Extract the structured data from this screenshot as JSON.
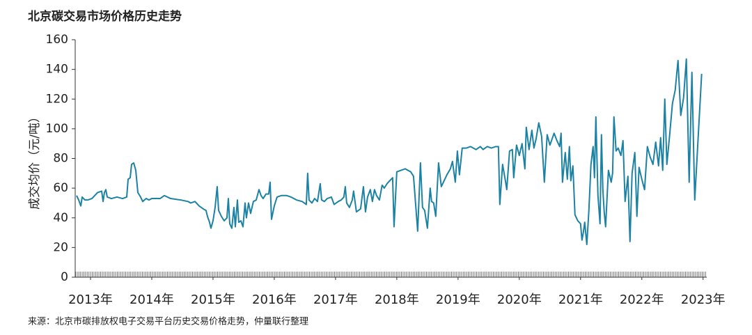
{
  "chart_data": {
    "type": "line",
    "title": "北京碳交易市场价格历史走势",
    "ylabel": "成交均价（元/吨）",
    "source": "来源：北京市碳排放权电子交易平台历史交易价格走势，仲量联行整理",
    "color": "#1c82a3",
    "xlim": [
      2012.75,
      2023.06
    ],
    "xticks": [
      {
        "value": 2013,
        "label": "2013年"
      },
      {
        "value": 2014,
        "label": "2014年"
      },
      {
        "value": 2015,
        "label": "2015年"
      },
      {
        "value": 2016,
        "label": "2016年"
      },
      {
        "value": 2017,
        "label": "2017年"
      },
      {
        "value": 2018,
        "label": "2018年"
      },
      {
        "value": 2019,
        "label": "2019年"
      },
      {
        "value": 2020,
        "label": "2020年"
      },
      {
        "value": 2021,
        "label": "2021年"
      },
      {
        "value": 2022,
        "label": "2022年"
      },
      {
        "value": 2023,
        "label": "2023年"
      }
    ],
    "ylim": [
      0,
      160
    ],
    "yticks": [
      0,
      20,
      40,
      60,
      80,
      100,
      120,
      140,
      160
    ],
    "grid": false,
    "x": [
      2012.773,
      2012.807,
      2012.841,
      2012.864,
      2012.909,
      2012.955,
      2013.023,
      2013.114,
      2013.182,
      2013.205,
      2013.227,
      2013.25,
      2013.273,
      2013.341,
      2013.432,
      2013.523,
      2013.591,
      2013.614,
      2013.648,
      2013.67,
      2013.705,
      2013.739,
      2013.773,
      2013.818,
      2013.852,
      2013.909,
      2013.955,
      2014.0,
      2014.136,
      2014.205,
      2014.307,
      2014.477,
      2014.591,
      2014.636,
      2014.705,
      2014.773,
      2014.841,
      2014.886,
      2014.909,
      2014.943,
      2014.966,
      2015.0,
      2015.034,
      2015.068,
      2015.091,
      2015.136,
      2015.182,
      2015.227,
      2015.25,
      2015.273,
      2015.307,
      2015.341,
      2015.364,
      2015.398,
      2015.42,
      2015.455,
      2015.489,
      2015.523,
      2015.545,
      2015.58,
      2015.614,
      2015.659,
      2015.705,
      2015.75,
      2015.784,
      2015.818,
      2015.864,
      2015.909,
      2015.932,
      2015.955,
      2016.0,
      2016.045,
      2016.114,
      2016.205,
      2016.273,
      2016.364,
      2016.455,
      2016.523,
      2016.545,
      2016.568,
      2016.614,
      2016.659,
      2016.705,
      2016.75,
      2016.773,
      2016.818,
      2016.864,
      2016.932,
      2016.977,
      2017.045,
      2017.091,
      2017.136,
      2017.159,
      2017.182,
      2017.227,
      2017.273,
      2017.295,
      2017.341,
      2017.409,
      2017.455,
      2017.489,
      2017.523,
      2017.568,
      2017.602,
      2017.636,
      2017.67,
      2017.716,
      2017.761,
      2017.795,
      2017.841,
      2017.886,
      2017.932,
      2017.955,
      2018.0,
      2018.068,
      2018.136,
      2018.227,
      2018.273,
      2018.341,
      2018.386,
      2018.42,
      2018.455,
      2018.5,
      2018.545,
      2018.568,
      2018.602,
      2018.636,
      2018.682,
      2018.727,
      2018.773,
      2018.818,
      2018.875,
      2018.909,
      2018.955,
      2018.989,
      2019.023,
      2019.068,
      2019.136,
      2019.205,
      2019.25,
      2019.295,
      2019.364,
      2019.409,
      2019.477,
      2019.545,
      2019.614,
      2019.659,
      2019.682,
      2019.727,
      2019.773,
      2019.795,
      2019.841,
      2019.886,
      2019.909,
      2019.955,
      2020.0,
      2020.045,
      2020.091,
      2020.114,
      2020.159,
      2020.205,
      2020.239,
      2020.273,
      2020.318,
      2020.364,
      2020.409,
      2020.455,
      2020.5,
      2020.568,
      2020.614,
      2020.659,
      2020.682,
      2020.705,
      2020.75,
      2020.784,
      2020.818,
      2020.841,
      2020.875,
      2020.909,
      2020.955,
      2021.0,
      2021.023,
      2021.045,
      2021.068,
      2021.102,
      2021.136,
      2021.17,
      2021.205,
      2021.227,
      2021.25,
      2021.284,
      2021.318,
      2021.341,
      2021.364,
      2021.386,
      2021.409,
      2021.455,
      2021.5,
      2021.523,
      2021.545,
      2021.58,
      2021.614,
      2021.659,
      2021.693,
      2021.727,
      2021.773,
      2021.807,
      2021.841,
      2021.886,
      2021.92,
      2021.955,
      2022.0,
      2022.045,
      2022.091,
      2022.136,
      2022.182,
      2022.227,
      2022.273,
      2022.307,
      2022.341,
      2022.375,
      2022.409,
      2022.455,
      2022.5,
      2022.545,
      2022.591,
      2022.636,
      2022.682,
      2022.727,
      2022.773,
      2022.818,
      2022.864,
      2022.909,
      2022.977
    ],
    "values": [
      55,
      52,
      48,
      54,
      52,
      52,
      53,
      57,
      58,
      51,
      57,
      59,
      54,
      53,
      54,
      53,
      54,
      66,
      67,
      76,
      77,
      72,
      57,
      54,
      51,
      53,
      52,
      53,
      53,
      55,
      53,
      52,
      51,
      50,
      51,
      48,
      46,
      45,
      41,
      37,
      33,
      38,
      47,
      61,
      45,
      41,
      38,
      40,
      53,
      36,
      33,
      47,
      34,
      52,
      37,
      38,
      34,
      50,
      40,
      50,
      43,
      51,
      52,
      59,
      55,
      53,
      56,
      56,
      64,
      39,
      48,
      54,
      55,
      55,
      54,
      52,
      51,
      49,
      70,
      52,
      50,
      53,
      51,
      63,
      52,
      51,
      53,
      54,
      49,
      51,
      52,
      54,
      61,
      50,
      47,
      52,
      58,
      44,
      46,
      61,
      44,
      54,
      59,
      51,
      59,
      55,
      52,
      62,
      60,
      63,
      65,
      67,
      34,
      71,
      72,
      73,
      71,
      68,
      31,
      77,
      47,
      45,
      33,
      60,
      51,
      50,
      41,
      77,
      61,
      65,
      69,
      73,
      78,
      64,
      85,
      69,
      87,
      87,
      88,
      87,
      86,
      88,
      86,
      88,
      87,
      88,
      88,
      49,
      76,
      65,
      59,
      85,
      86,
      67,
      89,
      82,
      90,
      73,
      101,
      86,
      99,
      87,
      93,
      104,
      95,
      64,
      96,
      89,
      97,
      92,
      88,
      97,
      64,
      84,
      66,
      88,
      65,
      75,
      42,
      38,
      36,
      25,
      30,
      37,
      22,
      45,
      76,
      88,
      67,
      108,
      55,
      36,
      96,
      59,
      44,
      34,
      72,
      64,
      70,
      108,
      85,
      87,
      82,
      92,
      51,
      68,
      24,
      70,
      84,
      41,
      74,
      66,
      59,
      88,
      81,
      76,
      91,
      75,
      94,
      72,
      120,
      76,
      96,
      117,
      126,
      146,
      109,
      121,
      147,
      64,
      138,
      52,
      86,
      137
    ]
  }
}
